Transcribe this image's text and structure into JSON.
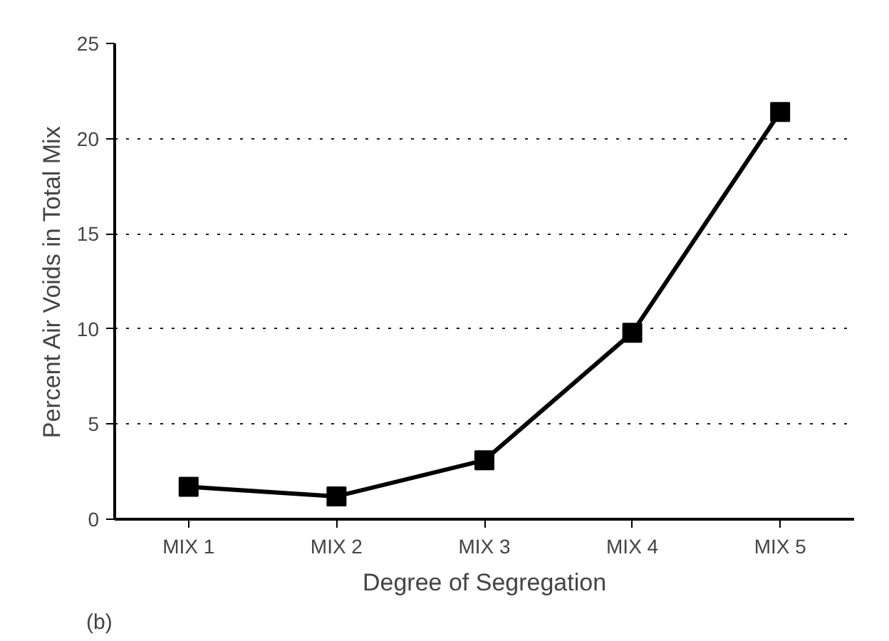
{
  "chart_data": {
    "type": "line",
    "xlabel": "Degree of Segregation",
    "ylabel": "Percent Air Voids in Total Mix",
    "categories": [
      "MIX 1",
      "MIX 2",
      "MIX 3",
      "MIX 4",
      "MIX 5"
    ],
    "series": [
      {
        "color": "#000000",
        "values": [
          1.7,
          1.2,
          3.1,
          9.8,
          21.4
        ]
      }
    ],
    "ylim": [
      0,
      25
    ],
    "yticks": [
      0,
      5,
      10,
      15,
      20,
      25
    ],
    "grid": "y",
    "marker": "square",
    "line_style": "solid",
    "annotations": [
      "(b)"
    ]
  }
}
